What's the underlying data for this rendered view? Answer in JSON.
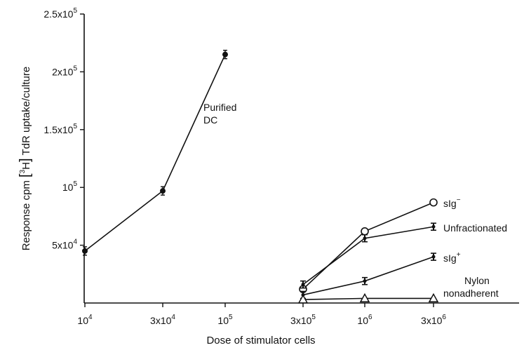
{
  "chart_data": {
    "type": "line",
    "xlabel": "Dose of stimulator cells",
    "ylabel_parts": {
      "pre": "Response cpm ",
      "bracket_open": "[",
      "sup": "3",
      "iso": "H",
      "bracket_close": "]",
      "post": " TdR uptake/culture"
    },
    "x_ticks": [
      {
        "value": 10000,
        "label_base": "10",
        "label_sup": "4"
      },
      {
        "value": 30000,
        "label_base": "3x10",
        "label_sup": "4"
      },
      {
        "value": 100000,
        "label_base": "10",
        "label_sup": "5"
      },
      {
        "value": 300000,
        "label_base": "3x10",
        "label_sup": "5"
      },
      {
        "value": 1000000,
        "label_base": "10",
        "label_sup": "6"
      },
      {
        "value": 3000000,
        "label_base": "3x10",
        "label_sup": "6"
      }
    ],
    "y_ticks": [
      {
        "value": 50000,
        "label_base": "5x10",
        "label_sup": "4"
      },
      {
        "value": 100000,
        "label_base": "10",
        "label_sup": "5"
      },
      {
        "value": 150000,
        "label_base": "1.5x10",
        "label_sup": "5"
      },
      {
        "value": 200000,
        "label_base": "2x10",
        "label_sup": "5"
      },
      {
        "value": 250000,
        "label_base": "2.5x10",
        "label_sup": "5"
      }
    ],
    "ylim": [
      0,
      250000
    ],
    "series": [
      {
        "name_lines": [
          "Purified",
          "DC"
        ],
        "marker": "filled-circle",
        "points": [
          {
            "x": 10000,
            "y": 45000
          },
          {
            "x": 30000,
            "y": 97000
          },
          {
            "x": 100000,
            "y": 215000
          }
        ]
      },
      {
        "name_base": "sIg",
        "name_sup": "−",
        "marker": "open-circle",
        "points": [
          {
            "x": 300000,
            "y": 12000
          },
          {
            "x": 1000000,
            "y": 62000
          },
          {
            "x": 3000000,
            "y": 87000
          }
        ]
      },
      {
        "name_lines": [
          "Unfractionated"
        ],
        "marker": "errorbar-filled",
        "points": [
          {
            "x": 300000,
            "y": 16000
          },
          {
            "x": 1000000,
            "y": 56000
          },
          {
            "x": 3000000,
            "y": 66000
          }
        ]
      },
      {
        "name_base": "sIg",
        "name_sup": "+",
        "marker": "errorbar-filled",
        "points": [
          {
            "x": 300000,
            "y": 7000
          },
          {
            "x": 1000000,
            "y": 19000
          },
          {
            "x": 3000000,
            "y": 40000
          }
        ]
      },
      {
        "name_lines": [
          "Nylon",
          "nonadherent"
        ],
        "marker": "open-triangle",
        "points": [
          {
            "x": 300000,
            "y": 3000
          },
          {
            "x": 1000000,
            "y": 4000
          },
          {
            "x": 3000000,
            "y": 4000
          }
        ]
      }
    ]
  }
}
